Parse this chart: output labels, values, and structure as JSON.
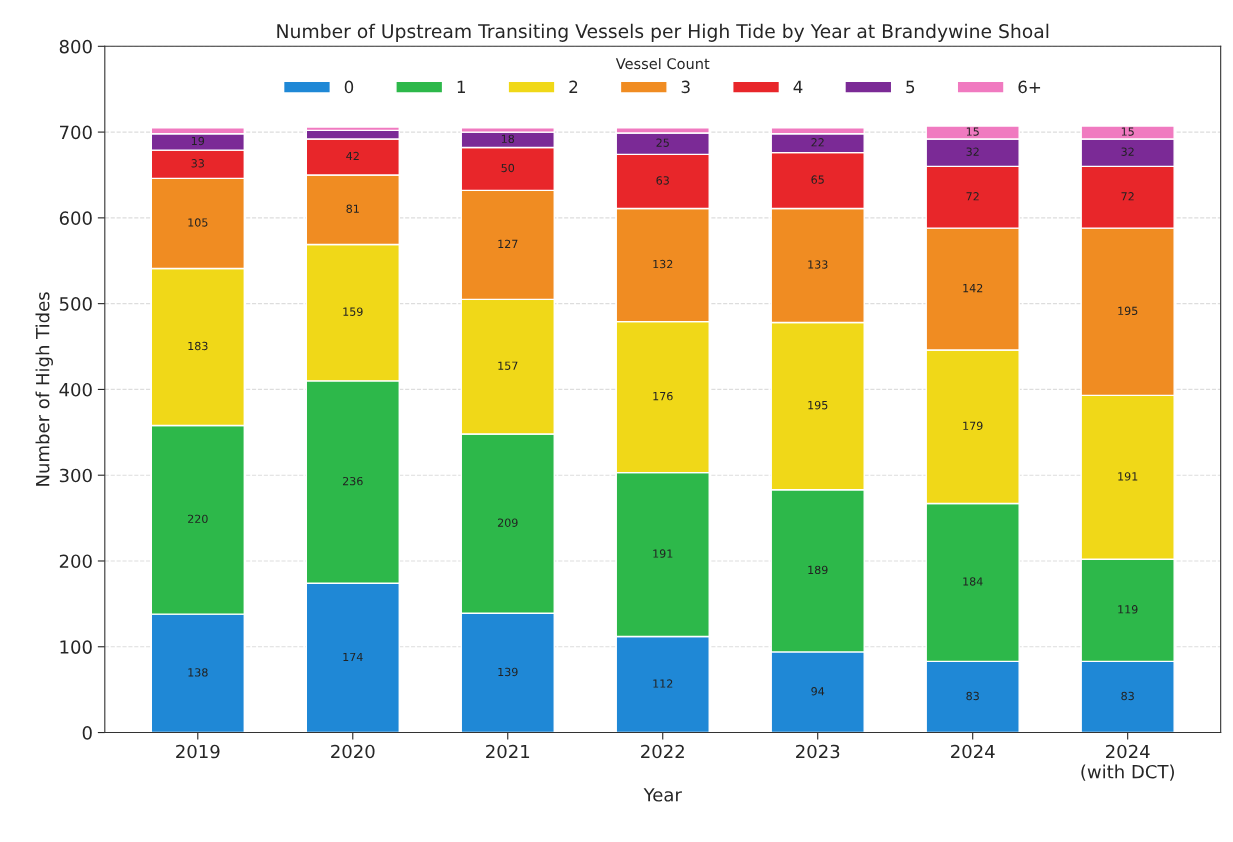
{
  "chart_data": {
    "type": "bar",
    "title": "Number of Upstream Transiting Vessels per High Tide by Year at Brandywine Shoal",
    "xlabel": "Year",
    "ylabel": "Number of High Tides",
    "legend_title": "Vessel Count",
    "categories": [
      "2019",
      "2020",
      "2021",
      "2022",
      "2023",
      "2024",
      "2024\n(with DCT)"
    ],
    "stacked": true,
    "ylim": [
      0,
      800
    ],
    "yticks": [
      0,
      100,
      200,
      300,
      400,
      500,
      600,
      700,
      800
    ],
    "grid": "y",
    "legend": "top",
    "series": [
      {
        "name": "0",
        "color": "#1f88d6",
        "values": [
          138,
          174,
          139,
          112,
          94,
          83,
          83
        ],
        "value_labels": [
          "138",
          "174",
          "139",
          "112",
          "94",
          "83",
          "83"
        ]
      },
      {
        "name": "1",
        "color": "#2db84a",
        "values": [
          220,
          236,
          209,
          191,
          189,
          184,
          119
        ],
        "value_labels": [
          "220",
          "236",
          "209",
          "191",
          "189",
          "184",
          "119"
        ]
      },
      {
        "name": "2",
        "color": "#f0d818",
        "values": [
          183,
          159,
          157,
          176,
          195,
          179,
          191
        ],
        "value_labels": [
          "183",
          "159",
          "157",
          "176",
          "195",
          "179",
          "191"
        ]
      },
      {
        "name": "3",
        "color": "#f08c22",
        "values": [
          105,
          81,
          127,
          132,
          133,
          142,
          195
        ],
        "value_labels": [
          "105",
          "81",
          "127",
          "132",
          "133",
          "142",
          "195"
        ]
      },
      {
        "name": "4",
        "color": "#e8262a",
        "values": [
          33,
          42,
          50,
          63,
          65,
          72,
          72
        ],
        "value_labels": [
          "33",
          "42",
          "50",
          "63",
          "65",
          "72",
          "72"
        ]
      },
      {
        "name": "5",
        "color": "#7b2a96",
        "values": [
          19,
          10,
          18,
          25,
          22,
          32,
          32
        ],
        "value_labels": [
          "19",
          null,
          "18",
          "25",
          "22",
          "32",
          "32"
        ]
      },
      {
        "name": "6+",
        "color": "#f07ac0",
        "values": [
          7,
          4,
          5,
          6,
          7,
          15,
          15
        ],
        "value_labels": [
          null,
          null,
          null,
          null,
          null,
          "15",
          "15"
        ]
      }
    ]
  }
}
